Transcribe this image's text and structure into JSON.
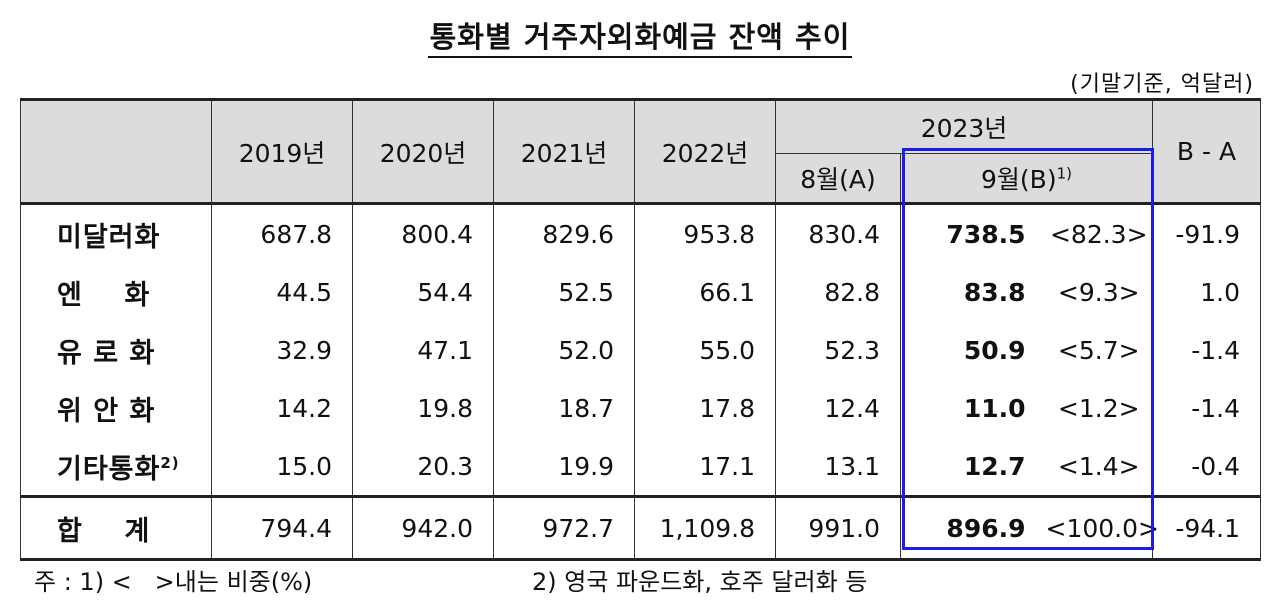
{
  "title": "통화별 거주자외화예금 잔액 추이",
  "unit": "(기말기준, 억달러)",
  "headers": {
    "years": [
      "2019년",
      "2020년",
      "2021년",
      "2022년"
    ],
    "year2023": "2023년",
    "aug": "8월(A)",
    "sep": "9월(B)",
    "sep_note": "1)",
    "diff": "B - A"
  },
  "rows": [
    {
      "label": "미달러화",
      "note": "",
      "y2019": "687.8",
      "y2020": "800.4",
      "y2021": "829.6",
      "y2022": "953.8",
      "aug": "830.4",
      "sep": "738.5",
      "share": "<82.3>",
      "diff": "-91.9"
    },
    {
      "label": "엔    화",
      "note": "",
      "y2019": "44.5",
      "y2020": "54.4",
      "y2021": "52.5",
      "y2022": "66.1",
      "aug": "82.8",
      "sep": "83.8",
      "share": "<9.3>",
      "diff": "1.0"
    },
    {
      "label": "유 로 화",
      "note": "",
      "y2019": "32.9",
      "y2020": "47.1",
      "y2021": "52.0",
      "y2022": "55.0",
      "aug": "52.3",
      "sep": "50.9",
      "share": "<5.7>",
      "diff": "-1.4"
    },
    {
      "label": "위 안 화",
      "note": "",
      "y2019": "14.2",
      "y2020": "19.8",
      "y2021": "18.7",
      "y2022": "17.8",
      "aug": "12.4",
      "sep": "11.0",
      "share": "<1.2>",
      "diff": "-1.4"
    },
    {
      "label": "기타통화",
      "note": "2)",
      "y2019": "15.0",
      "y2020": "20.3",
      "y2021": "19.9",
      "y2022": "17.1",
      "aug": "13.1",
      "sep": "12.7",
      "share": "<1.4>",
      "diff": "-0.4"
    }
  ],
  "total": {
    "label": "합    계",
    "y2019": "794.4",
    "y2020": "942.0",
    "y2021": "972.7",
    "y2022": "1,109.8",
    "aug": "991.0",
    "sep": "896.9",
    "share": "<100.0>",
    "diff": "-94.1"
  },
  "notes": {
    "note1": "주 : 1) <   >내는 비중(%)",
    "note2": "2) 영국 파운드화, 호주 달러화 등"
  },
  "colors": {
    "header_bg": "#dcdcdc",
    "highlight_border": "#1c1ce8"
  }
}
